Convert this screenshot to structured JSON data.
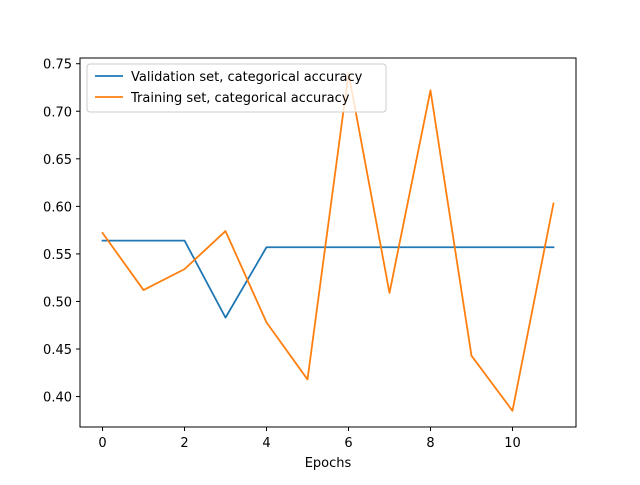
{
  "chart_data": {
    "type": "line",
    "title": "",
    "xlabel": "Epochs",
    "ylabel": "",
    "xlim": [
      -0.55,
      11.55
    ],
    "ylim": [
      0.368,
      0.756
    ],
    "xticks": [
      0,
      2,
      4,
      6,
      8,
      10
    ],
    "yticks": [
      0.4,
      0.45,
      0.5,
      0.55,
      0.6,
      0.65,
      0.7,
      0.75
    ],
    "xtick_labels": [
      "0",
      "2",
      "4",
      "6",
      "8",
      "10"
    ],
    "ytick_labels": [
      "0.40",
      "0.45",
      "0.50",
      "0.55",
      "0.60",
      "0.65",
      "0.70",
      "0.75"
    ],
    "grid": false,
    "legend_position": "upper-left",
    "x": [
      0,
      1,
      2,
      3,
      4,
      5,
      6,
      7,
      8,
      9,
      10,
      11
    ],
    "series": [
      {
        "name": "Validation set, categorical accuracy",
        "color": "#1f77b4",
        "values": [
          0.564,
          0.564,
          0.564,
          0.483,
          0.557,
          0.557,
          0.557,
          0.557,
          0.557,
          0.557,
          0.557,
          0.557
        ]
      },
      {
        "name": "Training set, categorical accuracy",
        "color": "#ff7f0e",
        "values": [
          0.572,
          0.512,
          0.534,
          0.574,
          0.478,
          0.418,
          0.74,
          0.509,
          0.722,
          0.443,
          0.385,
          0.603
        ]
      }
    ]
  }
}
